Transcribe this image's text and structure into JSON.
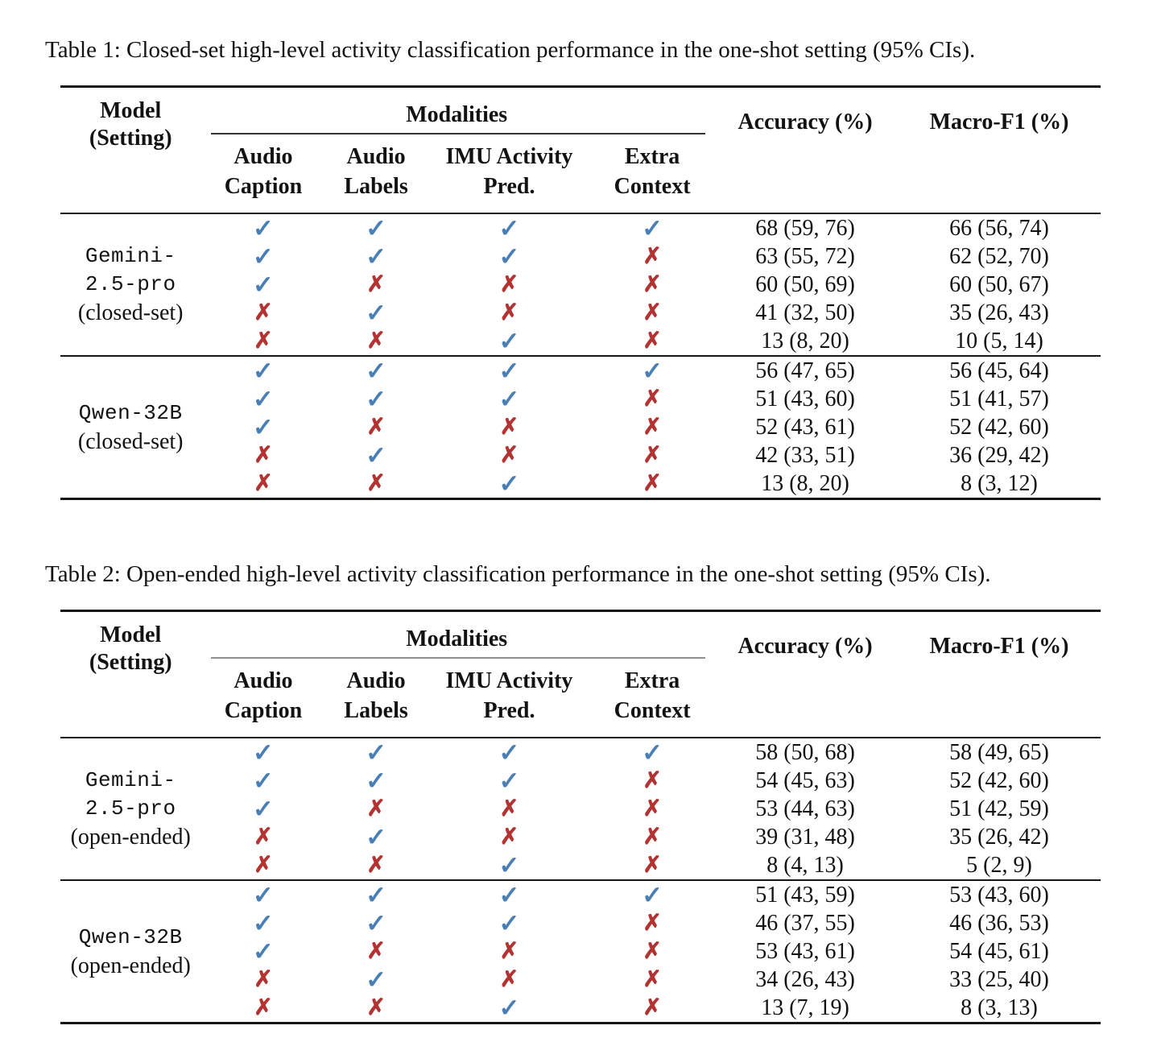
{
  "marks": {
    "check": "✓",
    "cross": "✗",
    "check_color": "#4a7fb5",
    "cross_color": "#b23331"
  },
  "header": {
    "model_line1": "Model",
    "model_line2": "(Setting)",
    "modalities": "Modalities",
    "sub": [
      [
        "Audio",
        "Caption"
      ],
      [
        "Audio",
        "Labels"
      ],
      [
        "IMU Activity",
        "Pred."
      ],
      [
        "Extra",
        "Context"
      ]
    ],
    "accuracy": "Accuracy (%)",
    "macro_f1": "Macro-F1 (%)"
  },
  "tables": [
    {
      "caption": "Table 1: Closed-set high-level activity classification performance in the one-shot setting (95% CIs).",
      "cmidrule_color": "#333333",
      "groups": [
        {
          "model_lines": [
            "Gemini-",
            "2.5-pro"
          ],
          "setting": "(closed-set)",
          "rows": [
            {
              "modalities": [
                true,
                true,
                true,
                true
              ],
              "accuracy": "68 (59, 76)",
              "macro_f1": "66 (56, 74)"
            },
            {
              "modalities": [
                true,
                true,
                true,
                false
              ],
              "accuracy": "63 (55, 72)",
              "macro_f1": "62 (52, 70)"
            },
            {
              "modalities": [
                true,
                false,
                false,
                false
              ],
              "accuracy": "60 (50, 69)",
              "macro_f1": "60 (50, 67)"
            },
            {
              "modalities": [
                false,
                true,
                false,
                false
              ],
              "accuracy": "41 (32, 50)",
              "macro_f1": "35 (26, 43)"
            },
            {
              "modalities": [
                false,
                false,
                true,
                false
              ],
              "accuracy": "13 (8, 20)",
              "macro_f1": "10 (5, 14)"
            }
          ]
        },
        {
          "model_lines": [
            "Qwen-32B"
          ],
          "setting": "(closed-set)",
          "rows": [
            {
              "modalities": [
                true,
                true,
                true,
                true
              ],
              "accuracy": "56 (47, 65)",
              "macro_f1": "56 (45, 64)"
            },
            {
              "modalities": [
                true,
                true,
                true,
                false
              ],
              "accuracy": "51 (43, 60)",
              "macro_f1": "51 (41, 57)"
            },
            {
              "modalities": [
                true,
                false,
                false,
                false
              ],
              "accuracy": "52 (43, 61)",
              "macro_f1": "52 (42, 60)"
            },
            {
              "modalities": [
                false,
                true,
                false,
                false
              ],
              "accuracy": "42 (33, 51)",
              "macro_f1": "36 (29, 42)"
            },
            {
              "modalities": [
                false,
                false,
                true,
                false
              ],
              "accuracy": "13 (8, 20)",
              "macro_f1": "8 (3, 12)"
            }
          ]
        }
      ]
    },
    {
      "caption": "Table 2: Open-ended high-level activity classification performance in the one-shot setting (95% CIs).",
      "cmidrule_color": "#8f8f8f",
      "groups": [
        {
          "model_lines": [
            "Gemini-",
            "2.5-pro"
          ],
          "setting": "(open-ended)",
          "rows": [
            {
              "modalities": [
                true,
                true,
                true,
                true
              ],
              "accuracy": "58 (50, 68)",
              "macro_f1": "58 (49, 65)"
            },
            {
              "modalities": [
                true,
                true,
                true,
                false
              ],
              "accuracy": "54 (45, 63)",
              "macro_f1": "52 (42, 60)"
            },
            {
              "modalities": [
                true,
                false,
                false,
                false
              ],
              "accuracy": "53 (44, 63)",
              "macro_f1": "51 (42, 59)"
            },
            {
              "modalities": [
                false,
                true,
                false,
                false
              ],
              "accuracy": "39 (31, 48)",
              "macro_f1": "35 (26, 42)"
            },
            {
              "modalities": [
                false,
                false,
                true,
                false
              ],
              "accuracy": "8 (4, 13)",
              "macro_f1": "5 (2, 9)"
            }
          ]
        },
        {
          "model_lines": [
            "Qwen-32B"
          ],
          "setting": "(open-ended)",
          "rows": [
            {
              "modalities": [
                true,
                true,
                true,
                true
              ],
              "accuracy": "51 (43, 59)",
              "macro_f1": "53 (43, 60)"
            },
            {
              "modalities": [
                true,
                true,
                true,
                false
              ],
              "accuracy": "46 (37, 55)",
              "macro_f1": "46 (36, 53)"
            },
            {
              "modalities": [
                true,
                false,
                false,
                false
              ],
              "accuracy": "53 (43, 61)",
              "macro_f1": "54 (45, 61)"
            },
            {
              "modalities": [
                false,
                true,
                false,
                false
              ],
              "accuracy": "34 (26, 43)",
              "macro_f1": "33 (25, 40)"
            },
            {
              "modalities": [
                false,
                false,
                true,
                false
              ],
              "accuracy": "13 (7, 19)",
              "macro_f1": "8 (3, 13)"
            }
          ]
        }
      ]
    }
  ]
}
